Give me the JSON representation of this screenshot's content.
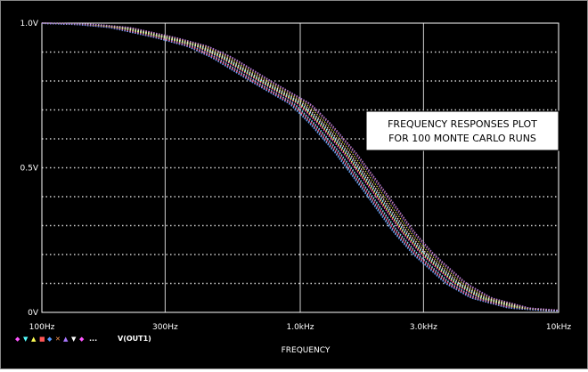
{
  "chart_data": {
    "type": "line",
    "x_scale": "log",
    "xlim": [
      100,
      10000
    ],
    "ylim": [
      0,
      1.0
    ],
    "xlabel": "FREQUENCY",
    "ylabel": "",
    "x_ticks": [
      {
        "value": 100,
        "label": "100Hz"
      },
      {
        "value": 300,
        "label": "300Hz"
      },
      {
        "value": 1000,
        "label": "1.0kHz"
      },
      {
        "value": 3000,
        "label": "3.0kHz"
      },
      {
        "value": 10000,
        "label": "10kHz"
      }
    ],
    "y_ticks": [
      {
        "value": 0,
        "label": "0V"
      },
      {
        "value": 0.5,
        "label": "0.5V"
      },
      {
        "value": 1.0,
        "label": "1.0V"
      }
    ],
    "annotation": [
      "FREQUENCY RESPONSES PLOT",
      "FOR 100 MONTE CARLO RUNS"
    ],
    "legend": {
      "label": "V(OUT1)",
      "placement": "bottom-left"
    },
    "grid": true,
    "run_count": 100,
    "series": [
      {
        "values": [
          [
            100,
            1.0
          ],
          [
            150,
            0.995
          ],
          [
            200,
            0.985
          ],
          [
            300,
            0.95
          ],
          [
            400,
            0.92
          ],
          [
            500,
            0.88
          ],
          [
            700,
            0.8
          ],
          [
            1000,
            0.72
          ],
          [
            1200,
            0.65
          ],
          [
            1500,
            0.55
          ],
          [
            2000,
            0.4
          ],
          [
            2500,
            0.28
          ],
          [
            3000,
            0.2
          ],
          [
            4000,
            0.1
          ],
          [
            5000,
            0.05
          ],
          [
            7000,
            0.015
          ],
          [
            10000,
            0.005
          ]
        ]
      }
    ],
    "colors": {
      "background": "#000000",
      "grid": "#cfcfcf",
      "axis_text": "#ffffff",
      "trace_colors": [
        "#ffffff",
        "#ff55ff",
        "#55ffff",
        "#ffff55",
        "#ff5555",
        "#5599ff",
        "#ff9955",
        "#aa77ff"
      ]
    }
  }
}
